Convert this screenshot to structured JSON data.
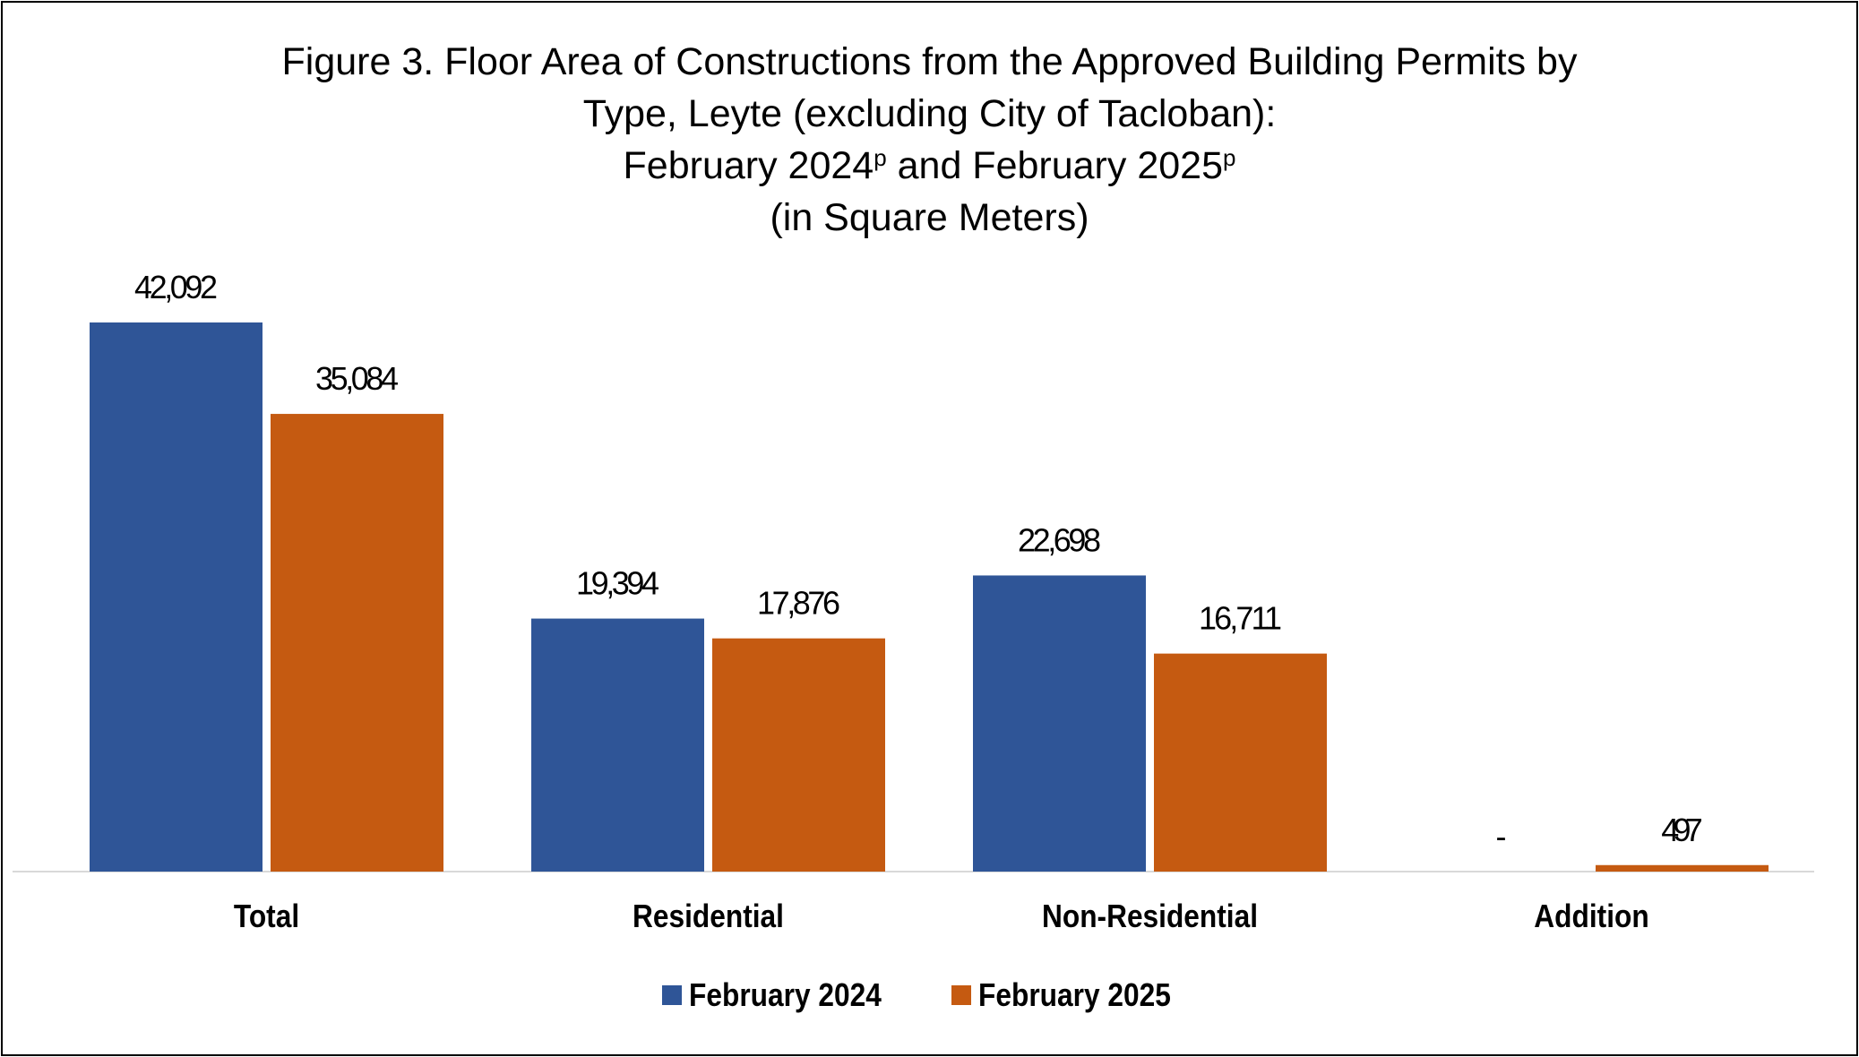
{
  "chart_data": {
    "type": "bar",
    "title": {
      "line1": "Figure 3. Floor Area of Constructions from the Approved Building Permits by",
      "line2": "Type, Leyte (excluding City of Tacloban):",
      "line3_part1": "February 2024",
      "line3_sup1": "p",
      "line3_part2": " and February 2025",
      "line3_sup2": "p",
      "line4": "(in Square Meters)"
    },
    "categories": [
      "Total",
      "Residential",
      "Non-Residential",
      "Addition"
    ],
    "series": [
      {
        "name": "February 2024",
        "color": "#2F5597",
        "values": [
          42092,
          19394,
          22698,
          0
        ],
        "labels": [
          "42,092",
          "19,394",
          "22,698",
          "-"
        ]
      },
      {
        "name": "February 2025",
        "color": "#C55A11",
        "values": [
          35084,
          17876,
          16711,
          497
        ],
        "labels": [
          "35,084",
          "17,876",
          "16,711",
          "497"
        ]
      }
    ],
    "ylim": [
      0,
      45000
    ],
    "grid": false,
    "legend_position": "bottom",
    "axis_color": "#D9D9D9"
  }
}
